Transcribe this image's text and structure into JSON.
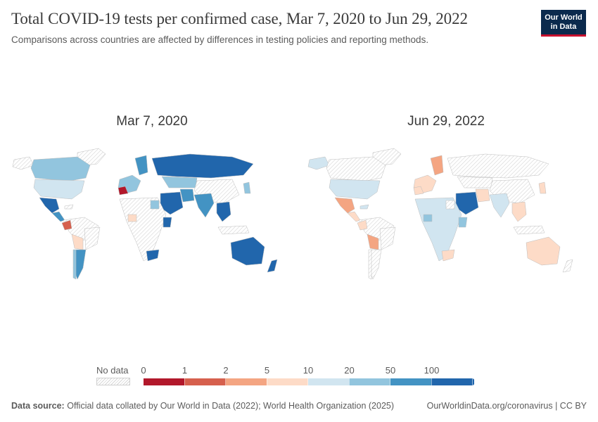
{
  "header": {
    "title": "Total COVID-19 tests per confirmed case, Mar 7, 2020 to Jun 29, 2022",
    "subtitle": "Comparisons across countries are affected by differences in testing policies and reporting methods.",
    "logo_line1": "Our World",
    "logo_line2": "in Data"
  },
  "maps": [
    {
      "date": "Mar 7, 2020"
    },
    {
      "date": "Jun 29, 2022"
    }
  ],
  "legend": {
    "no_data_label": "No data",
    "bins": [
      {
        "label": "0",
        "color": "#b2182b"
      },
      {
        "label": "1",
        "color": "#d6604d"
      },
      {
        "label": "2",
        "color": "#f4a582"
      },
      {
        "label": "5",
        "color": "#fddbc7"
      },
      {
        "label": "10",
        "color": "#d1e5f0"
      },
      {
        "label": "20",
        "color": "#92c5de"
      },
      {
        "label": "50",
        "color": "#4393c3"
      },
      {
        "label": "100",
        "color": "#2166ac"
      }
    ],
    "no_data_color": "#e6e6e6"
  },
  "footer": {
    "source_label": "Data source:",
    "source_text": "Official data collated by Our World in Data (2022); World Health Organization (2025)",
    "url": "OurWorldinData.org/coronavirus | CC BY"
  }
}
